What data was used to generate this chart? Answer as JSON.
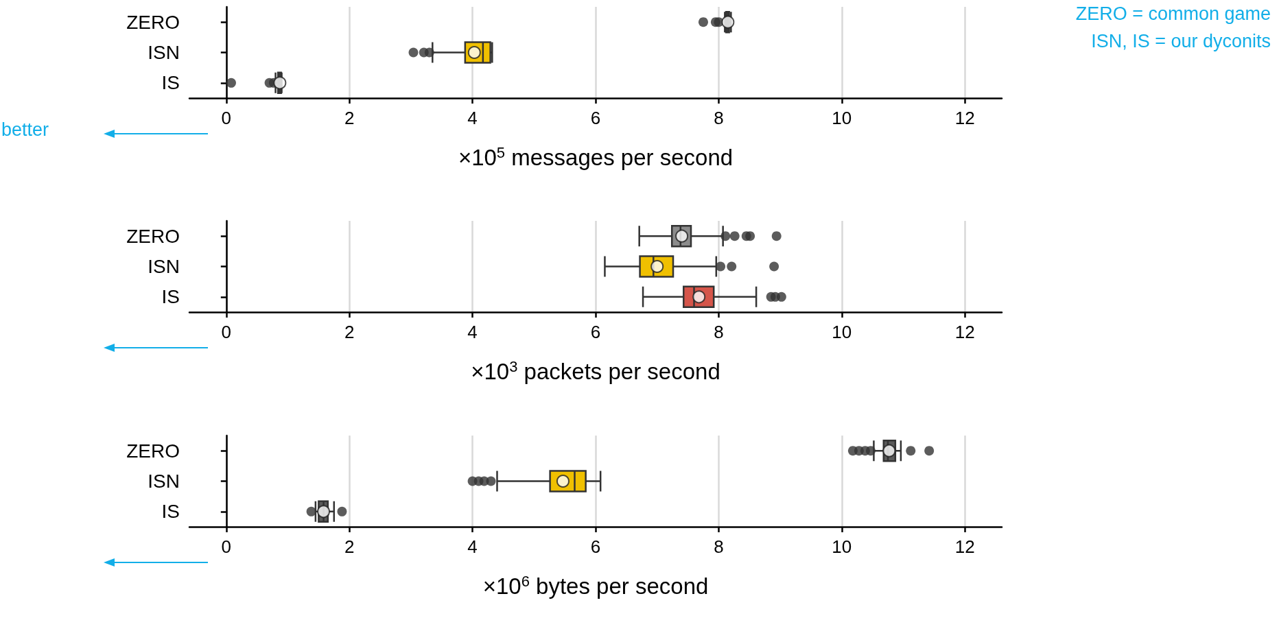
{
  "chart_data": [
    {
      "type": "box",
      "orientation": "horizontal",
      "categories": [
        "ZERO",
        "ISN",
        "IS"
      ],
      "colors": [
        "#5a5a5a",
        "#f0c000",
        "#5a5a5a"
      ],
      "boxes": [
        {
          "low": 8.1,
          "q1": 8.12,
          "median": 8.15,
          "q3": 8.17,
          "high": 8.2,
          "mean": 8.15,
          "outliers": [
            7.75,
            7.95,
            8.0
          ]
        },
        {
          "low": 3.35,
          "q1": 3.88,
          "median": 4.17,
          "q3": 4.29,
          "high": 4.32,
          "mean": 4.03,
          "outliers": [
            3.04,
            3.21,
            3.3
          ]
        },
        {
          "low": 0.8,
          "q1": 0.84,
          "median": 0.86,
          "q3": 0.89,
          "high": 0.9,
          "mean": 0.87,
          "outliers": [
            0.08,
            0.7,
            0.77
          ]
        }
      ],
      "xlim": [
        -0.6,
        12.6
      ],
      "xticks": [
        0,
        2,
        4,
        6,
        8,
        10,
        12
      ],
      "grid": "x",
      "xlabel": "×10$^{5}$ messages per second",
      "annotations": [
        "ZERO = common game",
        "ISN, IS = our dyconits",
        "better"
      ]
    },
    {
      "type": "box",
      "orientation": "horizontal",
      "categories": [
        "ZERO",
        "ISN",
        "IS"
      ],
      "colors": [
        "#8c8c8c",
        "#f0c000",
        "#d5554a"
      ],
      "boxes": [
        {
          "low": 6.71,
          "q1": 7.24,
          "median": 7.38,
          "q3": 7.55,
          "high": 8.07,
          "mean": 7.4,
          "outliers": [
            8.11,
            8.26,
            8.45,
            8.51,
            8.94
          ]
        },
        {
          "low": 6.15,
          "q1": 6.72,
          "median": 6.94,
          "q3": 7.26,
          "high": 7.96,
          "mean": 7.0,
          "outliers": [
            8.03,
            8.21,
            8.9
          ]
        },
        {
          "low": 6.77,
          "q1": 7.43,
          "median": 7.6,
          "q3": 7.92,
          "high": 8.61,
          "mean": 7.68,
          "outliers": [
            8.85,
            8.92,
            9.02
          ]
        }
      ],
      "xlim": [
        -0.6,
        12.6
      ],
      "xticks": [
        0,
        2,
        4,
        6,
        8,
        10,
        12
      ],
      "grid": "x",
      "xlabel": "×10$^{3}$ packets per second"
    },
    {
      "type": "box",
      "orientation": "horizontal",
      "categories": [
        "ZERO",
        "ISN",
        "IS"
      ],
      "colors": [
        "#5a5a5a",
        "#f0c000",
        "#5a5a5a"
      ],
      "boxes": [
        {
          "low": 10.52,
          "q1": 10.68,
          "median": 10.75,
          "q3": 10.87,
          "high": 10.96,
          "mean": 10.77,
          "outliers": [
            10.18,
            10.28,
            10.38,
            10.47,
            11.12,
            11.42
          ]
        },
        {
          "low": 4.4,
          "q1": 5.26,
          "median": 5.66,
          "q3": 5.84,
          "high": 6.08,
          "mean": 5.47,
          "outliers": [
            4.0,
            4.1,
            4.19,
            4.3
          ]
        },
        {
          "low": 1.45,
          "q1": 1.5,
          "median": 1.58,
          "q3": 1.65,
          "high": 1.75,
          "mean": 1.58,
          "outliers": [
            1.38,
            1.88
          ]
        }
      ],
      "xlim": [
        -0.6,
        12.6
      ],
      "xticks": [
        0,
        2,
        4,
        6,
        8,
        10,
        12
      ],
      "grid": "x",
      "xlabel": "×10$^{6}$ bytes per second"
    }
  ]
}
